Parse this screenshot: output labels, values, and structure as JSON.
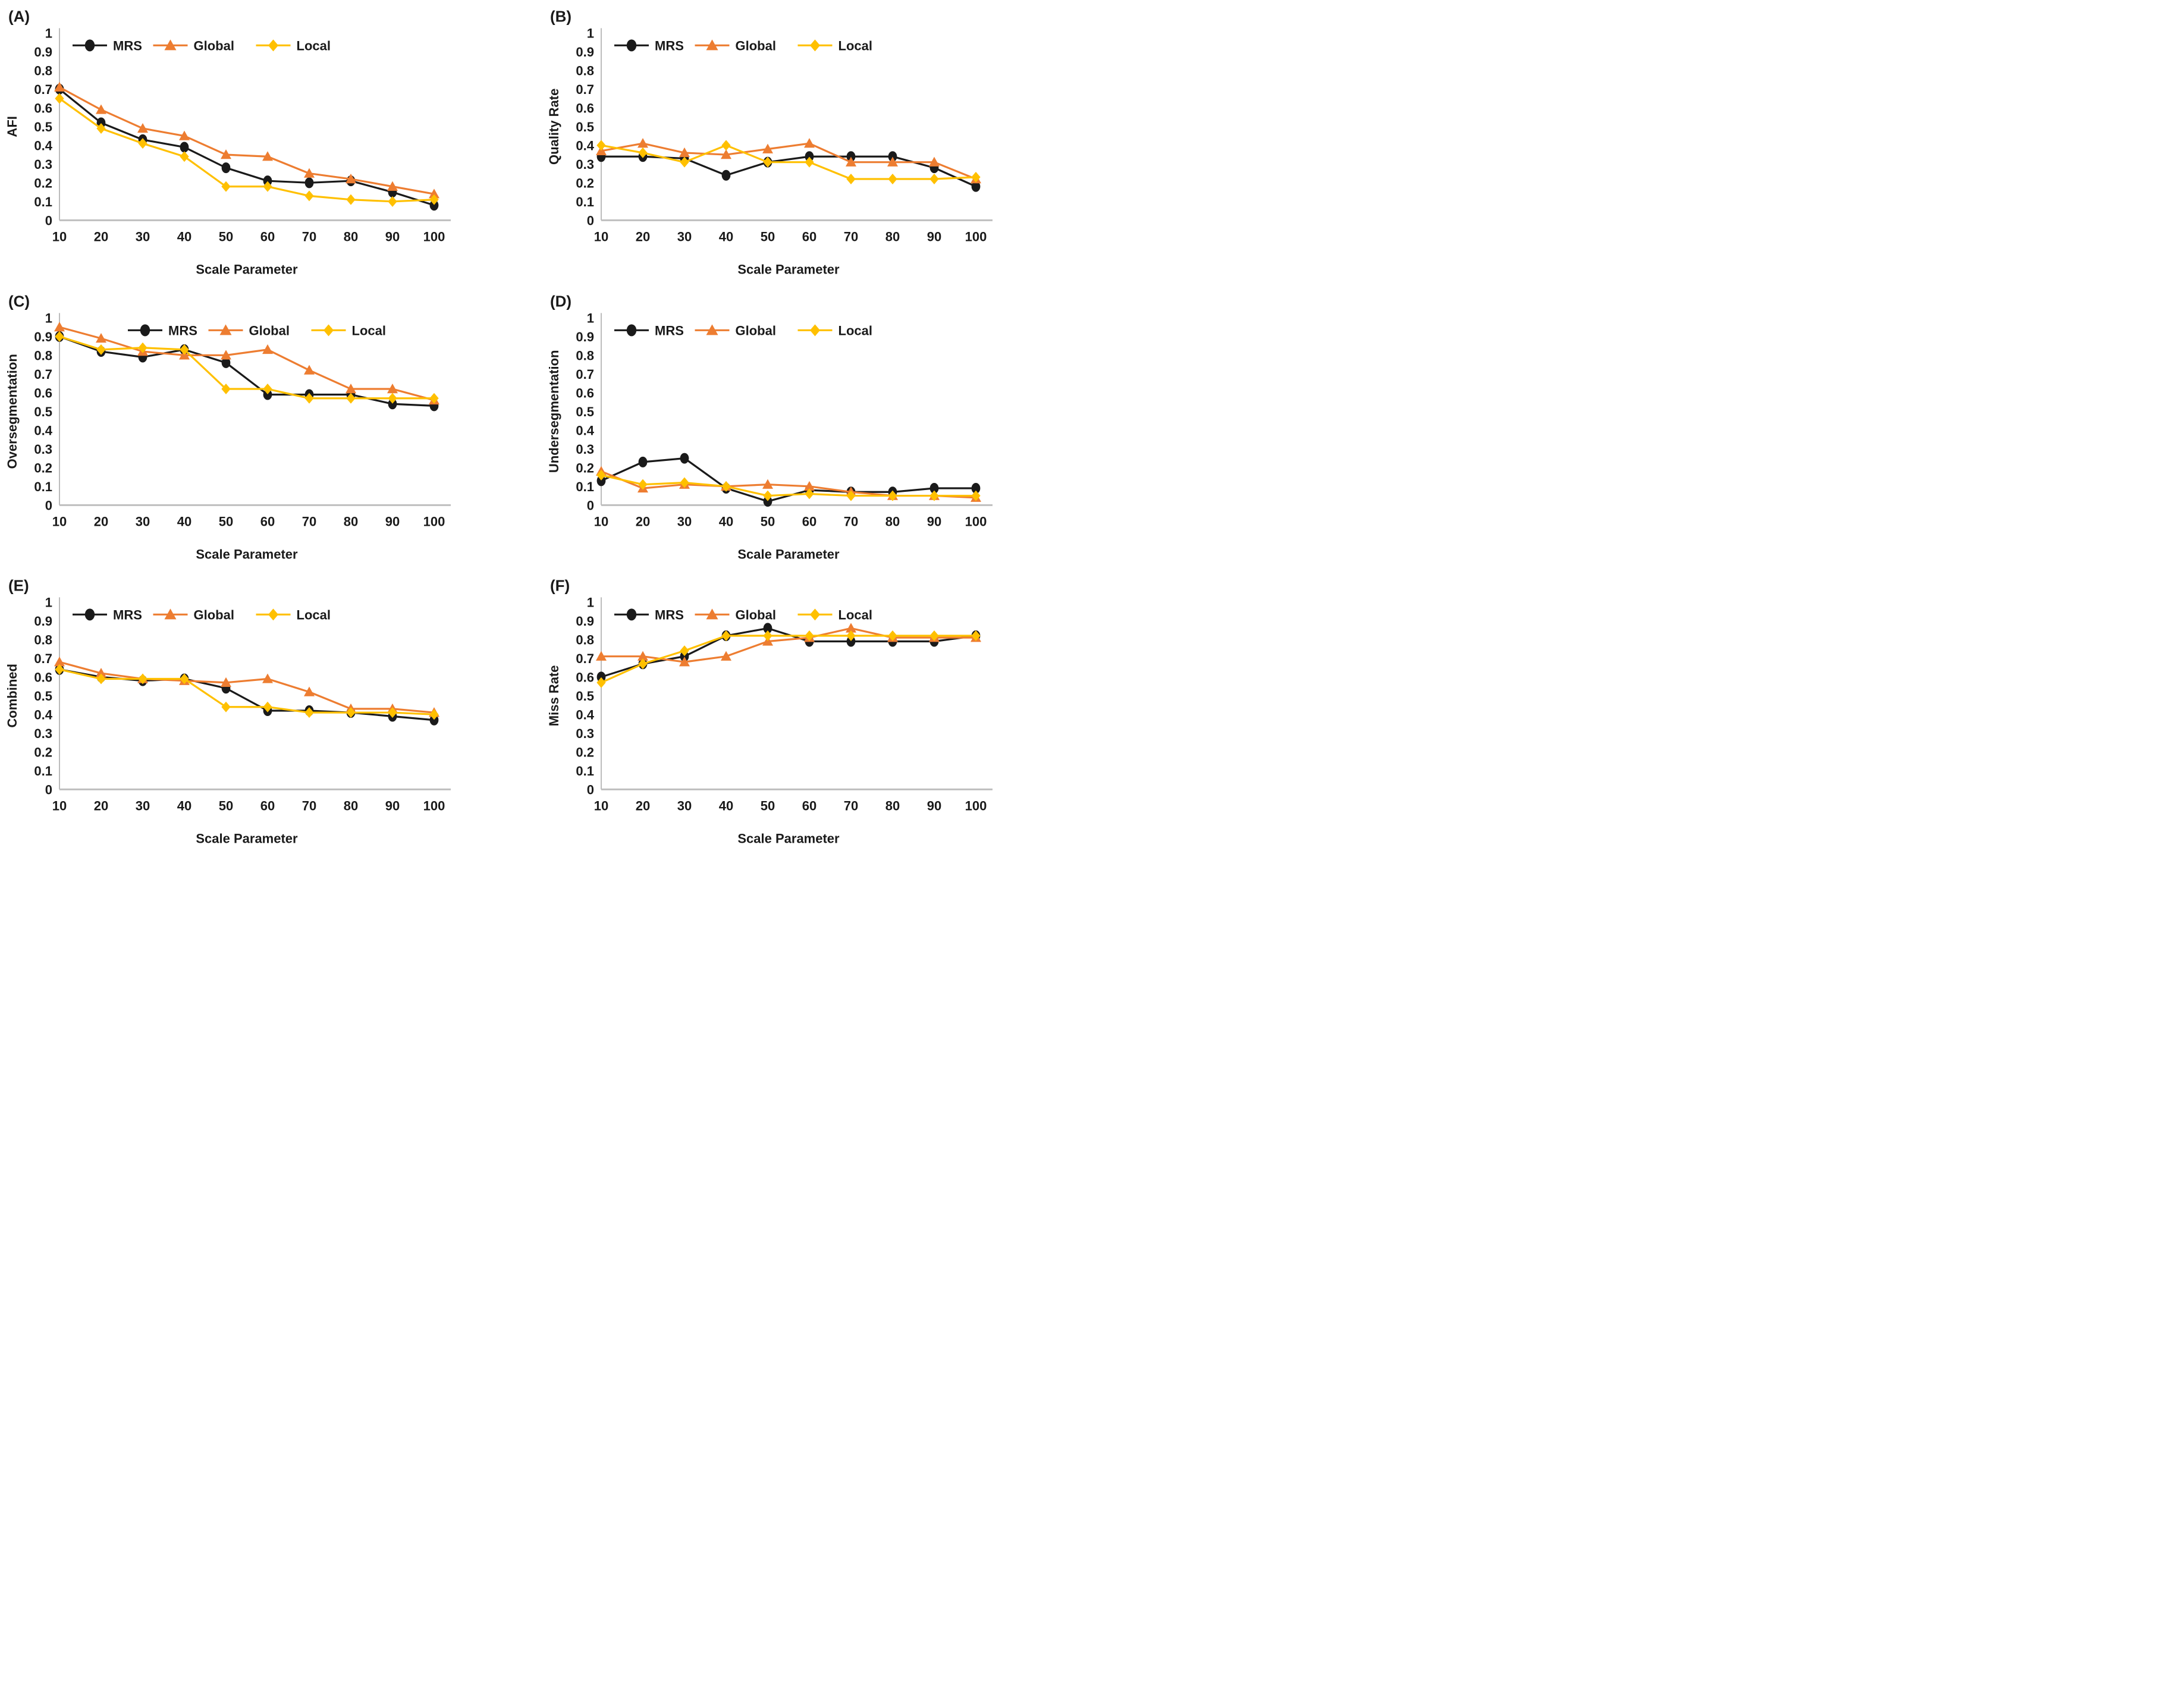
{
  "figure": {
    "x_label": "Scale Parameter",
    "x_ticks": [
      10,
      20,
      30,
      40,
      50,
      60,
      70,
      80,
      90,
      100
    ],
    "y_ticks": [
      0,
      0.1,
      0.2,
      0.3,
      0.4,
      0.5,
      0.6,
      0.7,
      0.8,
      0.9,
      1
    ],
    "legend_entries": [
      "MRS",
      "Global",
      "Local"
    ]
  },
  "colors": {
    "mrs": "#1a1a1a",
    "global": "#ED7D31",
    "local": "#FFC000",
    "axis_line": "#A6A6A6",
    "baseline": "#BFBFBF",
    "text": "#1a1a1a"
  },
  "chart_data": [
    {
      "type": "line",
      "panel": "(A)",
      "ylabel": "AFI",
      "xlabel": "Scale Parameter",
      "x": [
        10,
        20,
        30,
        40,
        50,
        60,
        70,
        80,
        90,
        100
      ],
      "ylim": [
        0,
        1
      ],
      "legend_position": "top-inside",
      "grid": false,
      "series": [
        {
          "name": "MRS",
          "marker": "circle",
          "color_key": "mrs",
          "values": [
            0.7,
            0.52,
            0.43,
            0.39,
            0.28,
            0.21,
            0.2,
            0.21,
            0.15,
            0.08
          ]
        },
        {
          "name": "Global",
          "marker": "triangle",
          "color_key": "global",
          "values": [
            0.71,
            0.59,
            0.49,
            0.45,
            0.35,
            0.34,
            0.25,
            0.22,
            0.18,
            0.14
          ]
        },
        {
          "name": "Local",
          "marker": "diamond",
          "color_key": "local",
          "values": [
            0.65,
            0.49,
            0.41,
            0.34,
            0.18,
            0.18,
            0.13,
            0.11,
            0.1,
            0.11
          ]
        }
      ]
    },
    {
      "type": "line",
      "panel": "(B)",
      "ylabel": "Quality Rate",
      "xlabel": "Scale Parameter",
      "x": [
        10,
        20,
        30,
        40,
        50,
        60,
        70,
        80,
        90,
        100
      ],
      "ylim": [
        0,
        1
      ],
      "legend_position": "top-inside",
      "grid": false,
      "series": [
        {
          "name": "MRS",
          "marker": "circle",
          "color_key": "mrs",
          "values": [
            0.34,
            0.34,
            0.33,
            0.24,
            0.31,
            0.34,
            0.34,
            0.34,
            0.28,
            0.18
          ]
        },
        {
          "name": "Global",
          "marker": "triangle",
          "color_key": "global",
          "values": [
            0.37,
            0.41,
            0.36,
            0.35,
            0.38,
            0.41,
            0.31,
            0.31,
            0.31,
            0.22
          ]
        },
        {
          "name": "Local",
          "marker": "diamond",
          "color_key": "local",
          "values": [
            0.4,
            0.36,
            0.31,
            0.4,
            0.31,
            0.31,
            0.22,
            0.22,
            0.22,
            0.23
          ]
        }
      ]
    },
    {
      "type": "line",
      "panel": "(C)",
      "ylabel": "Oversegmentation",
      "xlabel": "Scale Parameter",
      "x": [
        10,
        20,
        30,
        40,
        50,
        60,
        70,
        80,
        90,
        100
      ],
      "ylim": [
        0,
        1
      ],
      "legend_position": "top-inside-right",
      "grid": false,
      "series": [
        {
          "name": "MRS",
          "marker": "circle",
          "color_key": "mrs",
          "values": [
            0.9,
            0.82,
            0.79,
            0.83,
            0.76,
            0.59,
            0.59,
            0.59,
            0.54,
            0.53
          ]
        },
        {
          "name": "Global",
          "marker": "triangle",
          "color_key": "global",
          "values": [
            0.95,
            0.89,
            0.82,
            0.8,
            0.8,
            0.83,
            0.72,
            0.62,
            0.62,
            0.56
          ]
        },
        {
          "name": "Local",
          "marker": "diamond",
          "color_key": "local",
          "values": [
            0.9,
            0.83,
            0.84,
            0.83,
            0.62,
            0.62,
            0.57,
            0.57,
            0.57,
            0.57
          ]
        }
      ]
    },
    {
      "type": "line",
      "panel": "(D)",
      "ylabel": "Undersegmentation",
      "xlabel": "Scale Parameter",
      "x": [
        10,
        20,
        30,
        40,
        50,
        60,
        70,
        80,
        90,
        100
      ],
      "ylim": [
        0,
        1
      ],
      "legend_position": "top-inside",
      "grid": false,
      "series": [
        {
          "name": "MRS",
          "marker": "circle",
          "color_key": "mrs",
          "values": [
            0.13,
            0.23,
            0.25,
            0.09,
            0.02,
            0.08,
            0.07,
            0.07,
            0.09,
            0.09
          ]
        },
        {
          "name": "Global",
          "marker": "triangle",
          "color_key": "global",
          "values": [
            0.18,
            0.09,
            0.11,
            0.1,
            0.11,
            0.1,
            0.07,
            0.05,
            0.05,
            0.04
          ]
        },
        {
          "name": "Local",
          "marker": "diamond",
          "color_key": "local",
          "values": [
            0.16,
            0.11,
            0.12,
            0.1,
            0.05,
            0.06,
            0.05,
            0.05,
            0.05,
            0.05
          ]
        }
      ]
    },
    {
      "type": "line",
      "panel": "(E)",
      "ylabel": "Combined",
      "xlabel": "Scale Parameter",
      "x": [
        10,
        20,
        30,
        40,
        50,
        60,
        70,
        80,
        90,
        100
      ],
      "ylim": [
        0,
        1
      ],
      "legend_position": "top-inside",
      "grid": false,
      "series": [
        {
          "name": "MRS",
          "marker": "circle",
          "color_key": "mrs",
          "values": [
            0.64,
            0.6,
            0.58,
            0.59,
            0.54,
            0.42,
            0.42,
            0.41,
            0.39,
            0.37
          ]
        },
        {
          "name": "Global",
          "marker": "triangle",
          "color_key": "global",
          "values": [
            0.68,
            0.62,
            0.59,
            0.58,
            0.57,
            0.59,
            0.52,
            0.43,
            0.43,
            0.41
          ]
        },
        {
          "name": "Local",
          "marker": "diamond",
          "color_key": "local",
          "values": [
            0.64,
            0.59,
            0.59,
            0.59,
            0.44,
            0.44,
            0.41,
            0.41,
            0.41,
            0.4
          ]
        }
      ]
    },
    {
      "type": "line",
      "panel": "(F)",
      "ylabel": "Miss Rate",
      "xlabel": "Scale Parameter",
      "x": [
        10,
        20,
        30,
        40,
        50,
        60,
        70,
        80,
        90,
        100
      ],
      "ylim": [
        0,
        1
      ],
      "legend_position": "top-inside",
      "grid": false,
      "series": [
        {
          "name": "MRS",
          "marker": "circle",
          "color_key": "mrs",
          "values": [
            0.6,
            0.67,
            0.71,
            0.82,
            0.86,
            0.79,
            0.79,
            0.79,
            0.79,
            0.82
          ]
        },
        {
          "name": "Global",
          "marker": "triangle",
          "color_key": "global",
          "values": [
            0.71,
            0.71,
            0.68,
            0.71,
            0.79,
            0.81,
            0.86,
            0.81,
            0.81,
            0.81
          ]
        },
        {
          "name": "Local",
          "marker": "diamond",
          "color_key": "local",
          "values": [
            0.57,
            0.67,
            0.74,
            0.82,
            0.82,
            0.82,
            0.82,
            0.82,
            0.82,
            0.82
          ]
        }
      ]
    }
  ]
}
